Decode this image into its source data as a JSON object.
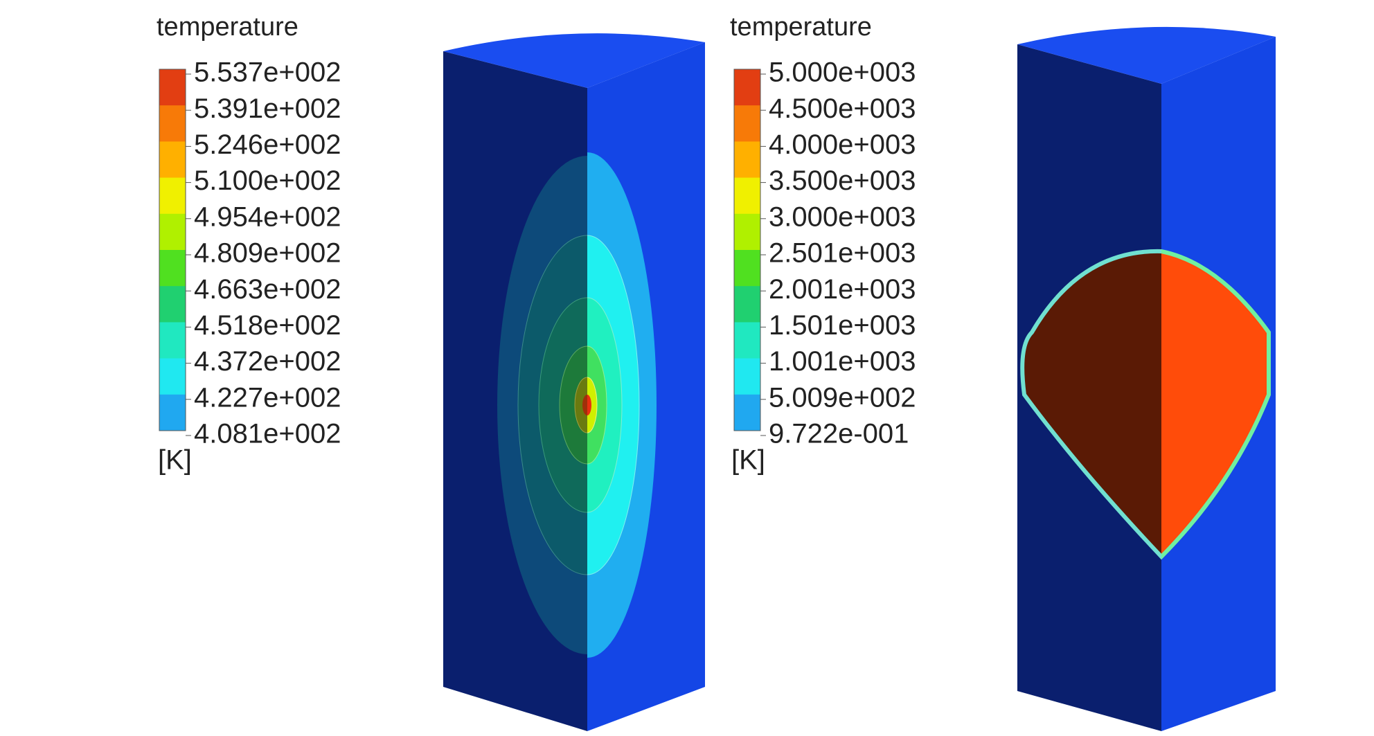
{
  "panels": [
    {
      "legend": {
        "title": "temperature",
        "labels": [
          "5.537e+002",
          "5.391e+002",
          "5.246e+002",
          "5.100e+002",
          "4.954e+002",
          "4.809e+002",
          "4.663e+002",
          "4.518e+002",
          "4.372e+002",
          "4.227e+002",
          "4.081e+002"
        ],
        "unit": "[K]"
      }
    },
    {
      "legend": {
        "title": "temperature",
        "labels": [
          "5.000e+003",
          "4.500e+003",
          "4.000e+003",
          "3.500e+003",
          "3.000e+003",
          "2.501e+003",
          "2.001e+003",
          "1.501e+003",
          "1.001e+003",
          "5.009e+002",
          "9.722e-001"
        ],
        "unit": "[K]"
      }
    }
  ]
}
